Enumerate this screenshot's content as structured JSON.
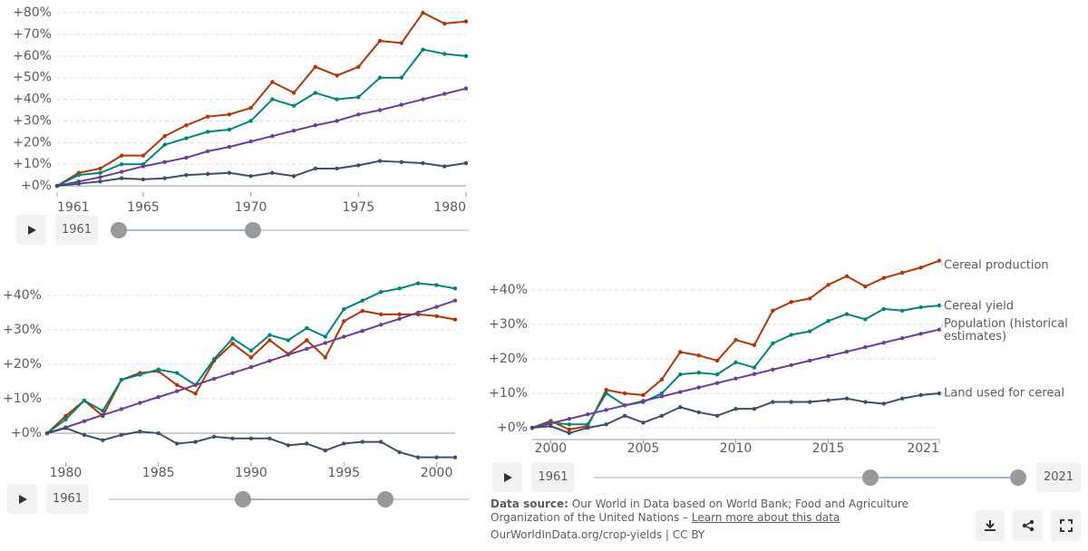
{
  "chart_data": [
    {
      "type": "line",
      "x": [
        1961,
        1962,
        1963,
        1964,
        1965,
        1966,
        1967,
        1968,
        1969,
        1970,
        1971,
        1972,
        1973,
        1974,
        1975,
        1976,
        1977,
        1978,
        1979,
        1980
      ],
      "series": [
        {
          "color": "#b13507",
          "values": [
            0,
            6,
            8,
            14,
            14,
            23,
            28,
            32,
            33,
            36,
            48,
            43,
            55,
            51,
            55,
            67,
            66,
            80,
            75,
            76
          ]
        },
        {
          "color": "#00847e",
          "values": [
            0,
            5,
            6,
            10,
            10,
            19,
            22,
            25,
            26,
            30,
            40,
            37,
            43,
            40,
            41,
            50,
            50,
            63,
            61,
            60
          ]
        },
        {
          "color": "#6d3e91",
          "values": [
            0,
            2,
            4,
            6.5,
            9,
            11,
            13,
            16,
            18,
            20.5,
            23,
            25.5,
            28,
            30,
            33,
            35,
            37.5,
            40,
            42.5,
            45
          ]
        },
        {
          "color": "#3d4f6b",
          "values": [
            0,
            1,
            2,
            3.5,
            3,
            3.5,
            5,
            5.5,
            6,
            4.5,
            6,
            4.5,
            8,
            8,
            9.5,
            11.5,
            11,
            10.5,
            9,
            10.5
          ]
        }
      ],
      "xlim": [
        1961,
        1980
      ],
      "xticks": [
        1961,
        1965,
        1970,
        1975,
        1980
      ],
      "ylim": [
        -2.9,
        83.8
      ],
      "yticks": [
        {
          "value": 0,
          "label": "+0%"
        },
        {
          "value": 10,
          "label": "+10%"
        },
        {
          "value": 20,
          "label": "+20%"
        },
        {
          "value": 30,
          "label": "+30%"
        },
        {
          "value": 40,
          "label": "+40%"
        },
        {
          "value": 50,
          "label": "+50%"
        },
        {
          "value": 60,
          "label": "+60%"
        },
        {
          "value": 70,
          "label": "+70%"
        },
        {
          "value": 80,
          "label": "+80%"
        }
      ],
      "grid": true
    },
    {
      "type": "line",
      "x": [
        1979,
        1980,
        1981,
        1982,
        1983,
        1984,
        1985,
        1986,
        1987,
        1988,
        1989,
        1990,
        1991,
        1992,
        1993,
        1994,
        1995,
        1996,
        1997,
        1998,
        1999,
        2000,
        2001
      ],
      "series": [
        {
          "color": "#b13507",
          "values": [
            0,
            5,
            9.5,
            5,
            15.5,
            17.5,
            18,
            14,
            11.5,
            21,
            26,
            22,
            27,
            23,
            27,
            22,
            32.5,
            35.5,
            34.5,
            34.5,
            34.5,
            34,
            33
          ]
        },
        {
          "color": "#00847e",
          "values": [
            0,
            4,
            9.5,
            6.5,
            15.5,
            17,
            18.5,
            17.5,
            14,
            21.5,
            27.5,
            24,
            28.5,
            27,
            30.5,
            28,
            36,
            38.5,
            41,
            42,
            43.5,
            43,
            42
          ]
        },
        {
          "color": "#6d3e91",
          "values": [
            0,
            1.7,
            3.5,
            5.3,
            7,
            8.8,
            10.5,
            12.2,
            14,
            15.8,
            17.5,
            19.2,
            21,
            22.8,
            24.5,
            26.2,
            28,
            29.7,
            31.5,
            33.2,
            35,
            36.7,
            38.5
          ]
        },
        {
          "color": "#3d4f6b",
          "values": [
            0,
            1.5,
            -0.5,
            -2,
            -0.5,
            0.5,
            0,
            -3,
            -2.5,
            -1,
            -1.5,
            -1.5,
            -1.5,
            -3.5,
            -3,
            -5,
            -3,
            -2.5,
            -2.5,
            -5.5,
            -7,
            -7,
            -7
          ]
        }
      ],
      "xlim": [
        1979,
        2001
      ],
      "xticks": [
        1980,
        1985,
        1990,
        1995,
        2000
      ],
      "ylim": [
        -8.4,
        44.2
      ],
      "yticks": [
        {
          "value": 0,
          "label": "+0%"
        },
        {
          "value": 10,
          "label": "+10%"
        },
        {
          "value": 20,
          "label": "+20%"
        },
        {
          "value": 30,
          "label": "+30%"
        },
        {
          "value": 40,
          "label": "+40%"
        }
      ],
      "grid": true
    },
    {
      "type": "line",
      "x": [
        1999,
        2000,
        2001,
        2002,
        2003,
        2004,
        2005,
        2006,
        2007,
        2008,
        2009,
        2010,
        2011,
        2012,
        2013,
        2014,
        2015,
        2016,
        2017,
        2018,
        2019,
        2020,
        2021
      ],
      "series": [
        {
          "name": "Cereal production",
          "color": "#b13507",
          "values": [
            0,
            2,
            -0.5,
            0.5,
            11,
            10,
            9.5,
            14,
            22,
            21,
            19.5,
            25.5,
            24,
            34,
            36.5,
            37.5,
            41.5,
            44,
            41,
            43.5,
            45,
            46.5,
            48.5
          ]
        },
        {
          "name": "Cereal yield",
          "color": "#00847e",
          "values": [
            0,
            1.5,
            1,
            1,
            10,
            6.5,
            7.5,
            10,
            15.5,
            16,
            15.5,
            19,
            17.5,
            24.5,
            27,
            28,
            31,
            33,
            31.5,
            34.5,
            34,
            35,
            35.5
          ]
        },
        {
          "name": "Population (historical estimates)",
          "color": "#6d3e91",
          "values": [
            0,
            1.3,
            2.6,
            3.9,
            5.2,
            6.5,
            7.8,
            9.1,
            10.4,
            11.7,
            13,
            14.3,
            15.6,
            16.9,
            18.2,
            19.5,
            20.8,
            22.1,
            23.4,
            24.7,
            26,
            27.3,
            28.5
          ]
        },
        {
          "name": "Land used for cereal",
          "color": "#3d4f6b",
          "values": [
            0,
            0.5,
            -1.5,
            0,
            1,
            3.5,
            1.5,
            3.5,
            6,
            4.5,
            3.5,
            5.5,
            5.5,
            7.5,
            7.5,
            7.5,
            8,
            8.5,
            7.5,
            7,
            8.5,
            9.5,
            10
          ]
        }
      ],
      "xlim": [
        1999,
        2021
      ],
      "xticks": [
        2000,
        2005,
        2010,
        2015,
        2021
      ],
      "ylim": [
        -3.4,
        49.2
      ],
      "yticks": [
        {
          "value": 0,
          "label": "+0%"
        },
        {
          "value": 10,
          "label": "+10%"
        },
        {
          "value": 20,
          "label": "+20%"
        },
        {
          "value": 30,
          "label": "+30%"
        },
        {
          "value": 40,
          "label": "+40%"
        }
      ],
      "grid": true
    }
  ],
  "timelines": [
    {
      "start": "1961"
    },
    {
      "start": "1961"
    },
    {
      "start": "1961",
      "end": "2021"
    }
  ],
  "source": {
    "label": "Data source:",
    "text": "Our World in Data based on World Bank; Food and Agriculture Organization of the United Nations –",
    "link": "Learn more about this data",
    "url": "OurWorldInData.org/crop-yields | CC BY"
  }
}
